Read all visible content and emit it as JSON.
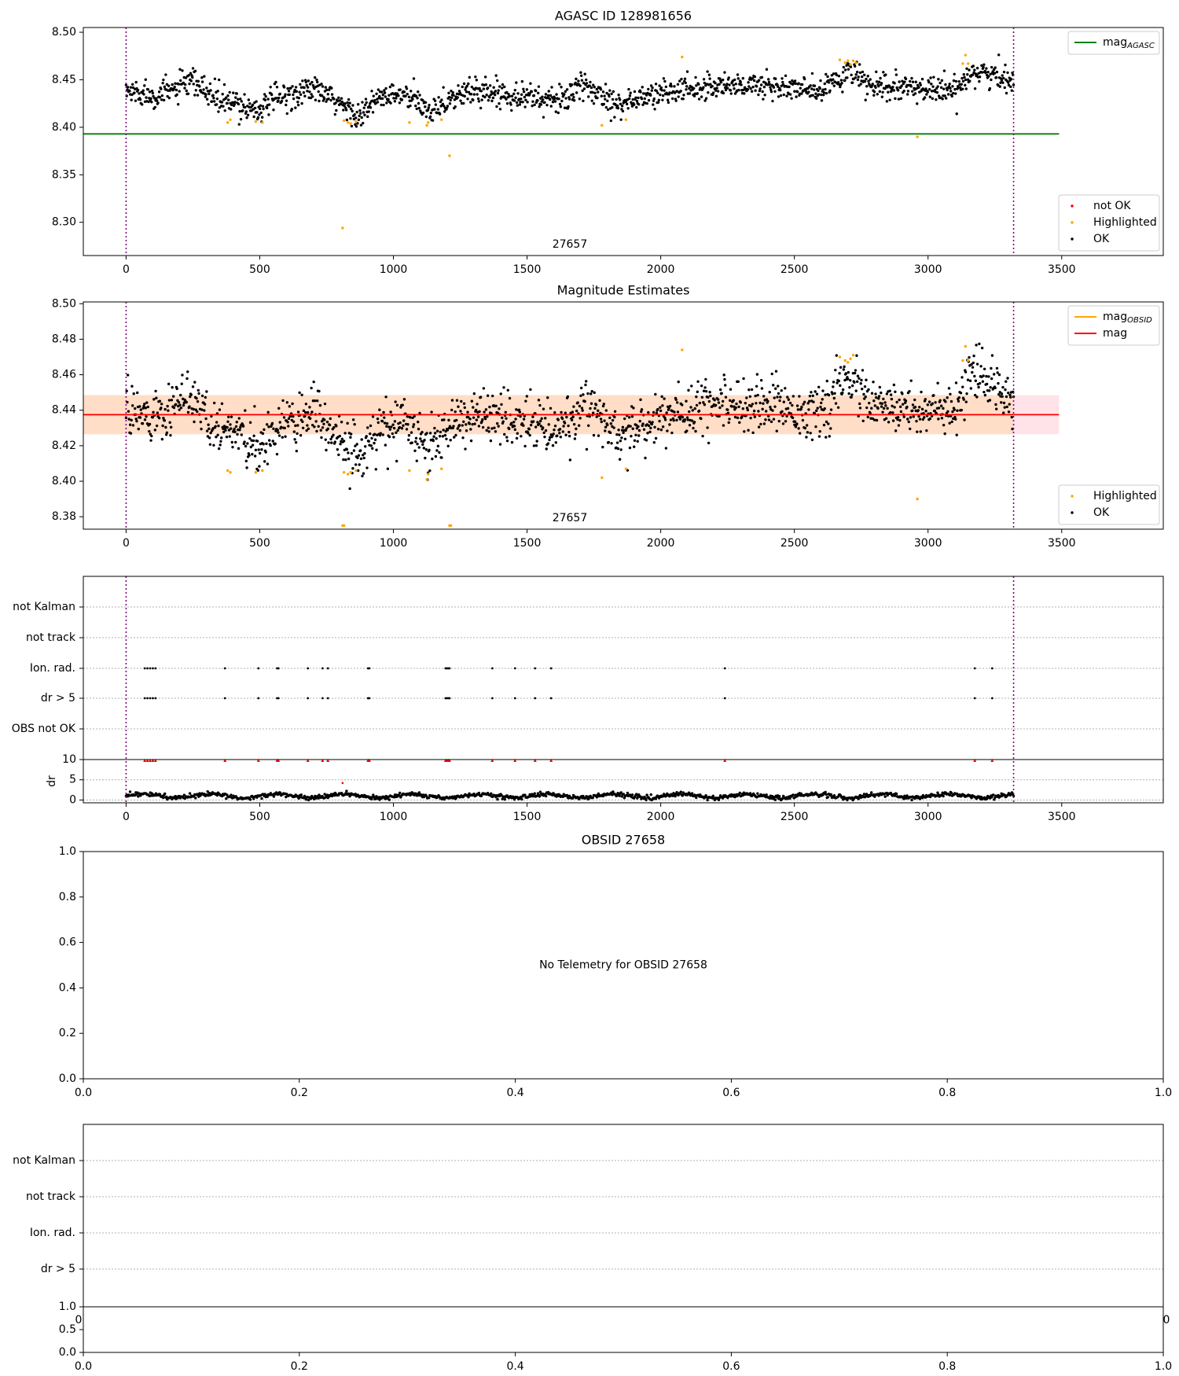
{
  "figure": {
    "colors": {
      "ok": "#000000",
      "highlighted": "#ffa500",
      "not_ok": "#ff0000",
      "agasc_line": "#008000",
      "obsid_line": "#ffa500",
      "mag_line": "#ff0000",
      "mag_band": "#ffc0cb",
      "obsid_band": "#ffdab9",
      "boundary": "#800080",
      "grid": "#b0b0b0"
    }
  },
  "chart_data": [
    {
      "id": "agasc",
      "type": "scatter",
      "title": "AGASC ID 128981656",
      "xlim": [
        -160,
        3880
      ],
      "ylim": [
        8.265,
        8.505
      ],
      "xticks": [
        0,
        500,
        1000,
        1500,
        2000,
        2500,
        3000,
        3500
      ],
      "xtick_labels": [
        "0",
        "500",
        "1000",
        "1500",
        "2000",
        "2500",
        "3000",
        "3500"
      ],
      "yticks": [
        8.3,
        8.35,
        8.4,
        8.45,
        8.5
      ],
      "ytick_labels": [
        "8.30",
        "8.35",
        "8.40",
        "8.45",
        "8.50"
      ],
      "hlines": [
        {
          "name": "mag_AGASC",
          "y": 8.393,
          "x0": -160,
          "x1": 3490,
          "color": "#008000"
        }
      ],
      "vlines": [
        0,
        3320
      ],
      "obsid_label": {
        "text": "27657",
        "x": 1660
      },
      "legend_top": {
        "entries": [
          {
            "type": "line",
            "label": "mag",
            "sub": "AGASC",
            "color": "#008000"
          }
        ]
      },
      "legend_bottom": {
        "entries": [
          {
            "type": "dot",
            "label": "not OK",
            "color": "#ff0000"
          },
          {
            "type": "dot",
            "label": "Highlighted",
            "color": "#ffa500"
          },
          {
            "type": "dot",
            "label": "OK",
            "color": "#000000"
          }
        ]
      },
      "series": {
        "x_range": [
          0,
          3320
        ],
        "n_points": 1500,
        "noise": 0.007,
        "trend_knots": [
          [
            0,
            8.438
          ],
          [
            120,
            8.434
          ],
          [
            250,
            8.447
          ],
          [
            350,
            8.428
          ],
          [
            500,
            8.419
          ],
          [
            560,
            8.43
          ],
          [
            700,
            8.441
          ],
          [
            800,
            8.424
          ],
          [
            880,
            8.412
          ],
          [
            950,
            8.432
          ],
          [
            1050,
            8.433
          ],
          [
            1130,
            8.418
          ],
          [
            1200,
            8.428
          ],
          [
            1300,
            8.439
          ],
          [
            1500,
            8.433
          ],
          [
            1600,
            8.427
          ],
          [
            1720,
            8.443
          ],
          [
            1850,
            8.425
          ],
          [
            2000,
            8.436
          ],
          [
            2200,
            8.444
          ],
          [
            2400,
            8.444
          ],
          [
            2600,
            8.437
          ],
          [
            2700,
            8.459
          ],
          [
            2800,
            8.441
          ],
          [
            3000,
            8.441
          ],
          [
            3100,
            8.437
          ],
          [
            3160,
            8.46
          ],
          [
            3320,
            8.449
          ]
        ],
        "highlighted": [
          [
            380,
            8.405
          ],
          [
            390,
            8.408
          ],
          [
            485,
            8.406
          ],
          [
            510,
            8.405
          ],
          [
            815,
            8.407
          ],
          [
            830,
            8.405
          ],
          [
            840,
            8.404
          ],
          [
            860,
            8.406
          ],
          [
            1060,
            8.405
          ],
          [
            1125,
            8.402
          ],
          [
            1130,
            8.405
          ],
          [
            1180,
            8.408
          ],
          [
            1210,
            8.37
          ],
          [
            810,
            8.294
          ],
          [
            1780,
            8.402
          ],
          [
            1870,
            8.408
          ],
          [
            2080,
            8.474
          ],
          [
            2960,
            8.39
          ],
          [
            2670,
            8.471
          ],
          [
            2690,
            8.468
          ],
          [
            2700,
            8.47
          ],
          [
            2710,
            8.466
          ],
          [
            2720,
            8.47
          ],
          [
            2730,
            8.468
          ],
          [
            3130,
            8.467
          ],
          [
            3140,
            8.476
          ],
          [
            3150,
            8.467
          ]
        ]
      }
    },
    {
      "id": "magnitude",
      "type": "scatter",
      "title": "Magnitude Estimates",
      "xlim": [
        -160,
        3880
      ],
      "ylim": [
        8.373,
        8.501
      ],
      "xticks": [
        0,
        500,
        1000,
        1500,
        2000,
        2500,
        3000,
        3500
      ],
      "xtick_labels": [
        "0",
        "500",
        "1000",
        "1500",
        "2000",
        "2500",
        "3000",
        "3500"
      ],
      "yticks": [
        8.38,
        8.4,
        8.42,
        8.44,
        8.46,
        8.48,
        8.5
      ],
      "ytick_labels": [
        "8.38",
        "8.40",
        "8.42",
        "8.44",
        "8.46",
        "8.48",
        "8.50"
      ],
      "hlines": [
        {
          "name": "mag_OBSID",
          "y": 8.4375,
          "x0": -160,
          "x1": 3320,
          "color": "#ffa500"
        },
        {
          "name": "mag",
          "y": 8.4375,
          "x0": -160,
          "x1": 3490,
          "color": "#ff0000"
        }
      ],
      "bands": [
        {
          "y0": 8.4265,
          "y1": 8.4485,
          "x0": -160,
          "x1": 3490,
          "color": "#ffc0cb",
          "opacity": 0.45
        },
        {
          "y0": 8.4265,
          "y1": 8.4485,
          "x0": -160,
          "x1": 3320,
          "color": "#ffdab9",
          "opacity": 0.7
        }
      ],
      "vlines": [
        0,
        3320
      ],
      "obsid_label": {
        "text": "27657",
        "x": 1660
      },
      "legend_top": {
        "entries": [
          {
            "type": "line",
            "label": "mag",
            "sub": "OBSID",
            "color": "#ffa500"
          },
          {
            "type": "line",
            "label": "mag",
            "sub": "",
            "color": "#ff0000"
          }
        ]
      },
      "legend_bottom": {
        "entries": [
          {
            "type": "dot",
            "label": "Highlighted",
            "color": "#ffa500"
          },
          {
            "type": "dot",
            "label": "OK",
            "color": "#000000"
          }
        ]
      },
      "series": {
        "x_range": [
          0,
          3320
        ],
        "n_points": 1500,
        "noise": 0.007,
        "trend_knots": [
          [
            0,
            8.438
          ],
          [
            120,
            8.434
          ],
          [
            250,
            8.447
          ],
          [
            350,
            8.428
          ],
          [
            500,
            8.419
          ],
          [
            560,
            8.43
          ],
          [
            700,
            8.441
          ],
          [
            800,
            8.424
          ],
          [
            880,
            8.412
          ],
          [
            950,
            8.432
          ],
          [
            1050,
            8.433
          ],
          [
            1130,
            8.418
          ],
          [
            1200,
            8.428
          ],
          [
            1300,
            8.439
          ],
          [
            1500,
            8.433
          ],
          [
            1600,
            8.427
          ],
          [
            1720,
            8.443
          ],
          [
            1850,
            8.425
          ],
          [
            2000,
            8.436
          ],
          [
            2200,
            8.444
          ],
          [
            2400,
            8.444
          ],
          [
            2600,
            8.437
          ],
          [
            2700,
            8.459
          ],
          [
            2800,
            8.441
          ],
          [
            3000,
            8.441
          ],
          [
            3100,
            8.437
          ],
          [
            3160,
            8.46
          ],
          [
            3320,
            8.449
          ]
        ],
        "highlighted": [
          [
            380,
            8.406
          ],
          [
            390,
            8.405
          ],
          [
            485,
            8.405
          ],
          [
            510,
            8.406
          ],
          [
            815,
            8.405
          ],
          [
            830,
            8.404
          ],
          [
            840,
            8.405
          ],
          [
            860,
            8.406
          ],
          [
            1060,
            8.406
          ],
          [
            1125,
            8.401
          ],
          [
            1130,
            8.404
          ],
          [
            1180,
            8.407
          ],
          [
            1780,
            8.402
          ],
          [
            1870,
            8.407
          ],
          [
            2080,
            8.474
          ],
          [
            2960,
            8.39
          ],
          [
            2670,
            8.47
          ],
          [
            2690,
            8.468
          ],
          [
            2700,
            8.467
          ],
          [
            2710,
            8.469
          ],
          [
            2720,
            8.471
          ],
          [
            3130,
            8.468
          ],
          [
            3140,
            8.476
          ],
          [
            3150,
            8.468
          ],
          [
            810,
            8.375
          ],
          [
            815,
            8.375
          ],
          [
            1210,
            8.375
          ],
          [
            1215,
            8.375
          ]
        ]
      }
    },
    {
      "id": "flags_27657",
      "type": "scatter",
      "title": "",
      "xlim": [
        -160,
        3880
      ],
      "xticks": [
        0,
        500,
        1000,
        1500,
        2000,
        2500,
        3000,
        3500
      ],
      "xtick_labels": [
        "0",
        "500",
        "1000",
        "1500",
        "2000",
        "2500",
        "3000",
        "3500"
      ],
      "categories": [
        "not Kalman",
        "not track",
        "Ion. rad.",
        "dr > 5",
        "OBS not OK"
      ],
      "flag_times": [
        70,
        80,
        90,
        100,
        110,
        370,
        495,
        565,
        570,
        680,
        735,
        755,
        905,
        910,
        1195,
        1200,
        1205,
        1210,
        1370,
        1455,
        1530,
        1590,
        2240,
        3175,
        3240
      ],
      "flag_rows": [
        "Ion. rad.",
        "dr > 5"
      ],
      "vlines": [
        0,
        3320
      ],
      "dr": {
        "ylabel": "dr",
        "ylim": [
          -0.3,
          10
        ],
        "yticks": [
          0,
          5,
          10
        ],
        "ytick_labels": [
          "0",
          "5",
          "10"
        ],
        "x_range": [
          0,
          3320
        ],
        "n_points": 1100,
        "baseline": 1.0,
        "outliers": [
          [
            810,
            4.2
          ]
        ],
        "clipped_at_10": [
          70,
          80,
          90,
          100,
          110,
          370,
          495,
          565,
          570,
          680,
          735,
          755,
          905,
          910,
          1195,
          1200,
          1205,
          1210,
          1370,
          1455,
          1530,
          1590,
          2240,
          3175,
          3240
        ]
      }
    },
    {
      "id": "obsid_27658",
      "type": "scatter",
      "title": "OBSID 27658",
      "message": "No Telemetry for OBSID 27658",
      "xlim": [
        0,
        1
      ],
      "ylim": [
        0,
        1
      ],
      "xticks": [
        0,
        0.2,
        0.4,
        0.6,
        0.8,
        1.0
      ],
      "xtick_labels": [
        "0.0",
        "0.2",
        "0.4",
        "0.6",
        "0.8",
        "1.0"
      ],
      "yticks": [
        0,
        0.2,
        0.4,
        0.6,
        0.8,
        1.0
      ],
      "ytick_labels": [
        "0.0",
        "0.2",
        "0.4",
        "0.6",
        "0.8",
        "1.0"
      ]
    },
    {
      "id": "flags_27658",
      "type": "scatter",
      "title": "",
      "categories": [
        "not Kalman",
        "not track",
        "Ion. rad.",
        "dr > 5"
      ],
      "partial_tick_left": "0",
      "partial_tick_right": "0",
      "bottom": {
        "xlim": [
          0,
          1
        ],
        "ylim": [
          0,
          1
        ],
        "xticks": [
          0,
          0.2,
          0.4,
          0.6,
          0.8,
          1.0
        ],
        "xtick_labels": [
          "0.0",
          "0.2",
          "0.4",
          "0.6",
          "0.8",
          "1.0"
        ],
        "yticks": [
          0,
          0.5,
          1.0
        ],
        "ytick_labels": [
          "0.0",
          "0.5",
          "1.0"
        ]
      }
    }
  ]
}
